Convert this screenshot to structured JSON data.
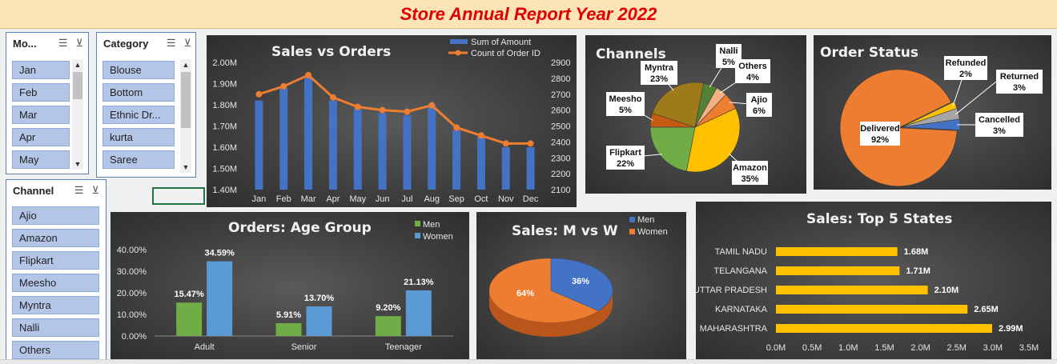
{
  "title": "Store Annual Report Year 2022",
  "colors": {
    "blue": "#4472c4",
    "orange": "#ed7d31",
    "green": "#70ad47",
    "gold": "#ffc000",
    "lightblue": "#5b9bd5",
    "panel": "#404040"
  },
  "slicers": {
    "month": {
      "label": "Mo...",
      "items": [
        "Jan",
        "Feb",
        "Mar",
        "Apr",
        "May"
      ]
    },
    "category": {
      "label": "Category",
      "items": [
        "Blouse",
        "Bottom",
        "Ethnic Dr...",
        "kurta",
        "Saree"
      ]
    },
    "channel": {
      "label": "Channel",
      "items": [
        "Ajio",
        "Amazon",
        "Flipkart",
        "Meesho",
        "Myntra",
        "Nalli",
        "Others"
      ]
    }
  },
  "chart_data": [
    {
      "id": "sales_vs_orders",
      "type": "bar+line",
      "title": "Sales vs Orders",
      "categories": [
        "Jan",
        "Feb",
        "Mar",
        "Apr",
        "May",
        "Jun",
        "Jul",
        "Aug",
        "Sep",
        "Oct",
        "Nov",
        "Dec"
      ],
      "series": [
        {
          "name": "Sum of Amount",
          "type": "bar",
          "axis": "left",
          "values": [
            1.82,
            1.88,
            1.93,
            1.82,
            1.78,
            1.76,
            1.75,
            1.8,
            1.68,
            1.65,
            1.6,
            1.6
          ]
        },
        {
          "name": "Count of Order ID",
          "type": "line",
          "axis": "right",
          "values": [
            2700,
            2750,
            2820,
            2680,
            2620,
            2600,
            2590,
            2630,
            2490,
            2440,
            2390,
            2390
          ]
        }
      ],
      "y_left": {
        "ticks": [
          "1.40M",
          "1.50M",
          "1.60M",
          "1.70M",
          "1.80M",
          "1.90M",
          "2.00M"
        ],
        "min": 1.4,
        "max": 2.0
      },
      "y_right": {
        "ticks": [
          "2100",
          "2200",
          "2300",
          "2400",
          "2500",
          "2600",
          "2700",
          "2800",
          "2900"
        ],
        "min": 2100,
        "max": 2900
      }
    },
    {
      "id": "channels",
      "type": "pie",
      "title": "Channels",
      "slices": [
        {
          "label": "Amazon",
          "value": 35,
          "text": "35%",
          "color": "#ffc000"
        },
        {
          "label": "Flipkart",
          "value": 22,
          "text": "22%",
          "color": "#70ad47"
        },
        {
          "label": "Meesho",
          "value": 5,
          "text": "5%",
          "color": "#c55a11"
        },
        {
          "label": "Myntra",
          "value": 23,
          "text": "23%",
          "color": "#9e7a1a"
        },
        {
          "label": "Nalli",
          "value": 5,
          "text": "5%",
          "color": "#548235"
        },
        {
          "label": "Others",
          "value": 4,
          "text": "4%",
          "color": "#f4b183"
        },
        {
          "label": "Ajio",
          "value": 6,
          "text": "6%",
          "color": "#ed7d31"
        }
      ]
    },
    {
      "id": "order_status",
      "type": "pie",
      "title": "Order Status",
      "slices": [
        {
          "label": "Delivered",
          "value": 92,
          "text": "92%",
          "color": "#ed7d31"
        },
        {
          "label": "Refunded",
          "value": 2,
          "text": "2%",
          "color": "#ffc000"
        },
        {
          "label": "Returned",
          "value": 3,
          "text": "3%",
          "color": "#a5a5a5"
        },
        {
          "label": "Cancelled",
          "value": 3,
          "text": "3%",
          "color": "#4472c4"
        }
      ]
    },
    {
      "id": "age_group",
      "type": "bar",
      "title": "Orders: Age Group",
      "categories": [
        "Adult",
        "Senior",
        "Teenager"
      ],
      "series": [
        {
          "name": "Men",
          "values": [
            15.47,
            5.91,
            9.2
          ],
          "labels": [
            "15.47%",
            "5.91%",
            "9.20%"
          ]
        },
        {
          "name": "Women",
          "values": [
            34.59,
            13.7,
            21.13
          ],
          "labels": [
            "34.59%",
            "13.70%",
            "21.13%"
          ]
        }
      ],
      "y": {
        "ticks": [
          "0.00%",
          "10.00%",
          "20.00%",
          "30.00%",
          "40.00%"
        ],
        "min": 0,
        "max": 40
      }
    },
    {
      "id": "sales_mw",
      "type": "pie",
      "title": "Sales: M vs W",
      "slices": [
        {
          "label": "Men",
          "value": 36,
          "text": "36%",
          "color": "#4472c4"
        },
        {
          "label": "Women",
          "value": 64,
          "text": "64%",
          "color": "#ed7d31"
        }
      ]
    },
    {
      "id": "top_states",
      "type": "bar",
      "orientation": "horizontal",
      "title": "Sales: Top 5 States",
      "categories": [
        "TAMIL NADU",
        "TELANGANA",
        "UTTAR PRADESH",
        "KARNATAKA",
        "MAHARASHTRA"
      ],
      "values": [
        1.68,
        1.71,
        2.1,
        2.65,
        2.99
      ],
      "labels": [
        "1.68M",
        "1.71M",
        "2.10M",
        "2.65M",
        "2.99M"
      ],
      "x": {
        "ticks": [
          "0.0M",
          "0.5M",
          "1.0M",
          "1.5M",
          "2.0M",
          "2.5M",
          "3.0M",
          "3.5M"
        ],
        "min": 0,
        "max": 3.5
      }
    }
  ]
}
